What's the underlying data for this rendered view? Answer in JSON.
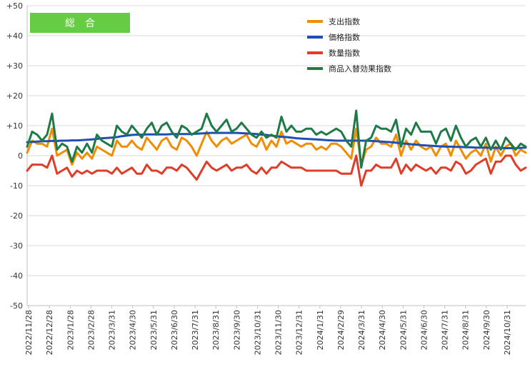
{
  "chart_data": {
    "type": "line",
    "badge": "総　合",
    "ylim": [
      -50,
      50
    ],
    "yticks": [
      "+50",
      "+40",
      "+30",
      "+20",
      "+10",
      "0",
      "-10",
      "-20",
      "-30",
      "-40",
      "-50"
    ],
    "grid": true,
    "legend_position": "top-right",
    "x_tick_labels": [
      "2022/11/28",
      "2022/12/28",
      "2023/1/28",
      "2023/2/28",
      "2023/3/31",
      "2023/4/30",
      "2023/5/31",
      "2023/6/30",
      "2023/7/31",
      "2023/8/31",
      "2023/9/30",
      "2023/10/31",
      "2023/11/30",
      "2023/12/31",
      "2024/1/31",
      "2024/2/29",
      "2024/3/31",
      "2024/4/30",
      "2024/5/31",
      "2024/6/30",
      "2024/7/31",
      "2024/8/31",
      "2024/9/30",
      "2024/10/31"
    ],
    "x_point_count": 101,
    "series": [
      {
        "name": "支出指数",
        "color": "#f28c00",
        "values": [
          1,
          5,
          4,
          4,
          3,
          9,
          0,
          1,
          2,
          -3,
          1,
          -1,
          1,
          -1,
          3,
          2,
          1,
          0,
          5,
          3,
          3,
          5,
          3,
          2,
          6,
          4,
          2,
          5,
          6,
          3,
          2,
          6,
          5,
          3,
          0,
          4,
          8,
          5,
          3,
          5,
          6,
          4,
          5,
          6,
          7,
          4,
          3,
          6,
          2,
          5,
          3,
          8,
          4,
          5,
          4,
          3,
          4,
          4,
          2,
          3,
          2,
          4,
          4,
          3,
          1,
          -1,
          9,
          -3,
          2,
          3,
          6,
          4,
          4,
          3,
          7,
          0,
          5,
          2,
          5,
          3,
          2,
          3,
          0,
          3,
          4,
          0,
          5,
          2,
          -1,
          1,
          2,
          0,
          4,
          -2,
          3,
          0,
          3,
          4,
          0,
          2,
          1
        ]
      },
      {
        "name": "価格指数",
        "color": "#1f4fb4",
        "values": [
          4.5,
          4.6,
          4.7,
          4.8,
          4.8,
          4.9,
          4.9,
          5.0,
          5.0,
          5.1,
          5.1,
          5.2,
          5.3,
          5.4,
          5.6,
          5.8,
          5.9,
          6.0,
          6.2,
          6.5,
          6.7,
          6.9,
          7.0,
          7.0,
          7.1,
          7.1,
          7.1,
          7.1,
          7.1,
          7.2,
          7.2,
          7.2,
          7.2,
          7.2,
          7.3,
          7.4,
          7.5,
          7.6,
          7.6,
          7.6,
          7.6,
          7.6,
          7.6,
          7.5,
          7.4,
          7.3,
          7.2,
          7.0,
          6.9,
          6.7,
          6.5,
          6.3,
          6.2,
          6.0,
          5.8,
          5.7,
          5.6,
          5.5,
          5.4,
          5.3,
          5.2,
          5.1,
          5.0,
          5.0,
          5.0,
          5.0,
          5.0,
          5.0,
          5.0,
          4.9,
          4.8,
          4.7,
          4.6,
          4.5,
          4.3,
          4.1,
          4.0,
          3.8,
          3.7,
          3.5,
          3.4,
          3.3,
          3.2,
          3.1,
          3.0,
          3.0,
          2.9,
          2.9,
          2.8,
          2.8,
          2.7,
          2.7,
          2.7,
          2.6,
          2.6,
          2.6,
          2.5,
          2.5,
          2.5,
          2.6,
          2.7
        ]
      },
      {
        "name": "数量指数",
        "color": "#e03c28",
        "values": [
          -5,
          -3,
          -3,
          -3,
          -4,
          0,
          -6,
          -5,
          -4,
          -7,
          -5,
          -6,
          -5,
          -6,
          -5,
          -5,
          -5,
          -6,
          -4,
          -6,
          -5,
          -4,
          -6,
          -6,
          -3,
          -5,
          -5,
          -6,
          -4,
          -4,
          -5,
          -3,
          -4,
          -6,
          -8,
          -5,
          -2,
          -4,
          -5,
          -4,
          -3,
          -5,
          -4,
          -4,
          -3,
          -5,
          -6,
          -4,
          -6,
          -4,
          -4,
          -2,
          -3,
          -4,
          -4,
          -4,
          -5,
          -5,
          -5,
          -5,
          -5,
          -5,
          -5,
          -6,
          -6,
          -6,
          0,
          -10,
          -5,
          -5,
          -3,
          -4,
          -4,
          -4,
          -1,
          -6,
          -3,
          -5,
          -3,
          -4,
          -5,
          -4,
          -6,
          -4,
          -4,
          -5,
          -2,
          -3,
          -6,
          -5,
          -3,
          -2,
          -1,
          -6,
          -2,
          -2,
          0,
          0,
          -3,
          -5,
          -4
        ]
      },
      {
        "name": "商品入替効果指数",
        "color": "#1e7a46",
        "values": [
          3,
          8,
          7,
          5,
          7,
          14,
          2,
          4,
          3,
          -2,
          3,
          1,
          4,
          1,
          7,
          5,
          4,
          3,
          10,
          8,
          7,
          10,
          8,
          6,
          9,
          11,
          7,
          10,
          11,
          8,
          6,
          10,
          9,
          7,
          8,
          9,
          14,
          10,
          8,
          10,
          12,
          8,
          9,
          11,
          9,
          7,
          6,
          8,
          6,
          7,
          6,
          13,
          8,
          10,
          8,
          8,
          9,
          9,
          7,
          8,
          7,
          8,
          9,
          8,
          5,
          3,
          15,
          -4,
          5,
          6,
          10,
          9,
          9,
          8,
          12,
          3,
          9,
          7,
          11,
          8,
          8,
          8,
          4,
          8,
          9,
          5,
          10,
          6,
          3,
          5,
          6,
          3,
          6,
          2,
          5,
          2,
          6,
          4,
          2,
          4,
          3
        ]
      }
    ]
  }
}
